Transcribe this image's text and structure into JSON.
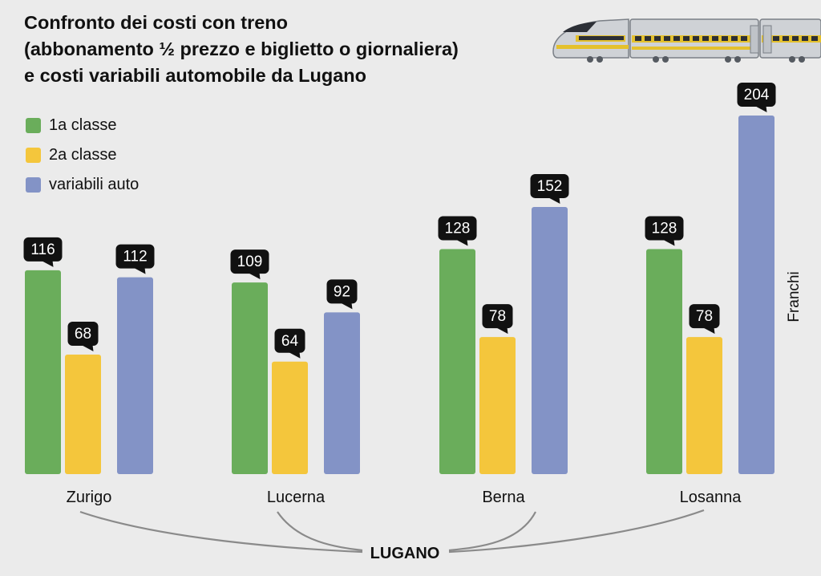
{
  "title_lines": [
    "Confronto dei costi con treno",
    "(abbonamento ½ prezzo e biglietto o giornaliera)",
    "e costi variabili automobile da Lugano"
  ],
  "unit_label": "Franchi",
  "origin_label": "LUGANO",
  "colors": {
    "first": "#6aad5b",
    "second": "#f4c63c",
    "car": "#8393c6",
    "callout": "#111111",
    "background": "#ebebeb"
  },
  "chart_data": {
    "type": "bar",
    "categories": [
      "Zurigo",
      "Lucerna",
      "Berna",
      "Losanna"
    ],
    "series": [
      {
        "name": "1a classe",
        "values": [
          116,
          109,
          128,
          128
        ]
      },
      {
        "name": "2a classe",
        "values": [
          68,
          64,
          78,
          78
        ]
      },
      {
        "name": "variabili auto",
        "values": [
          112,
          92,
          152,
          204
        ]
      }
    ],
    "ylabel": "Franchi",
    "ylim": [
      0,
      204
    ],
    "grid": false,
    "legend_position": "top-left",
    "data_labels": true
  }
}
